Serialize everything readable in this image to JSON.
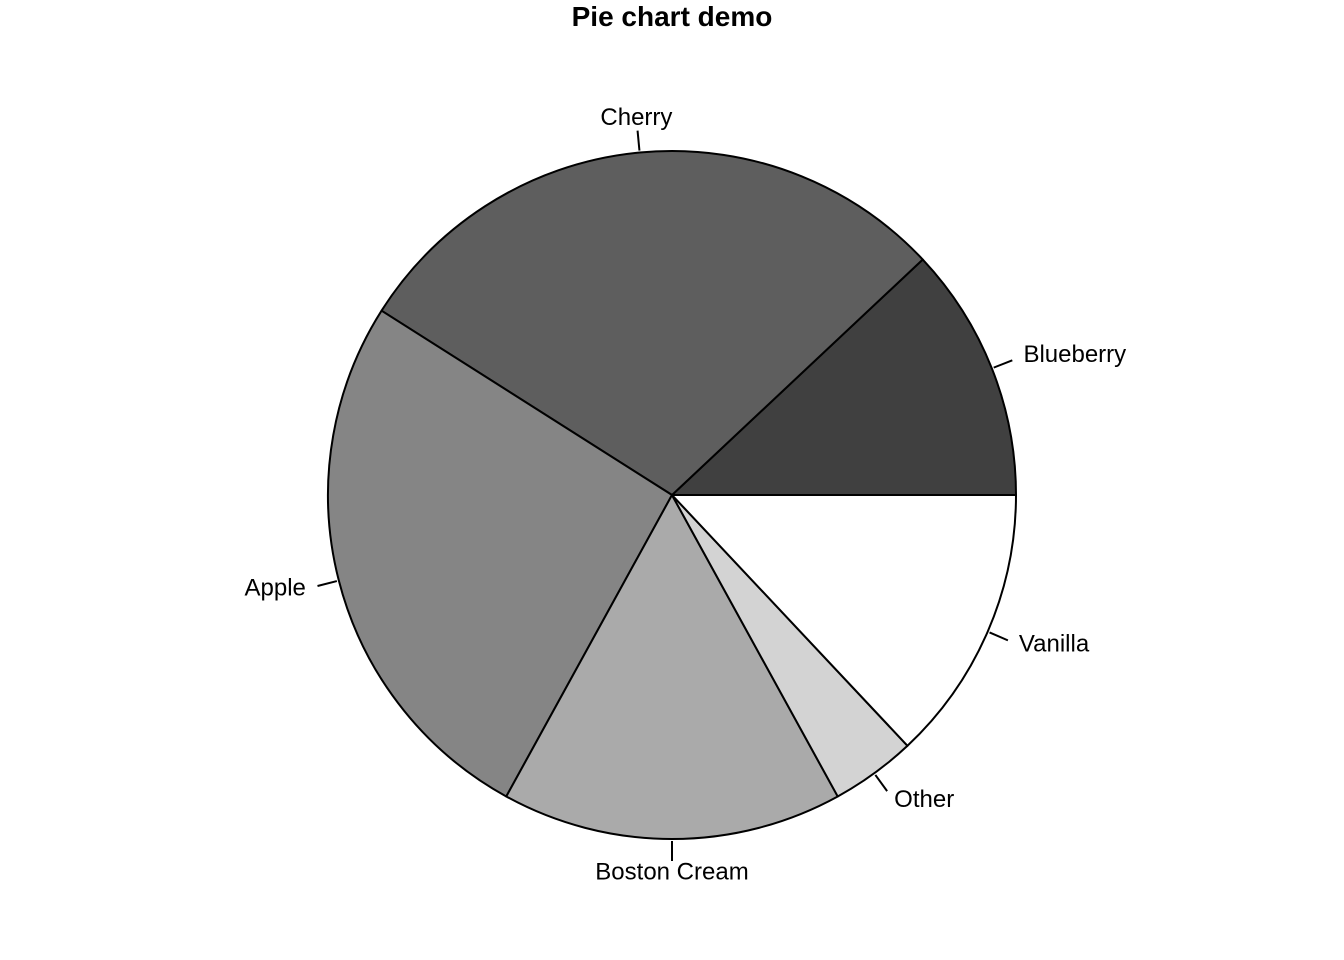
{
  "chart_data": {
    "type": "pie",
    "title": "Pie chart demo",
    "start_angle_deg": 0,
    "direction": "counterclockwise",
    "slices": [
      {
        "label": "Blueberry",
        "value": 0.12,
        "color": "#404040"
      },
      {
        "label": "Cherry",
        "value": 0.29,
        "color": "#5e5e5e"
      },
      {
        "label": "Apple",
        "value": 0.26,
        "color": "#858585"
      },
      {
        "label": "Boston Cream",
        "value": 0.16,
        "color": "#aaaaaa"
      },
      {
        "label": "Other",
        "value": 0.04,
        "color": "#d3d3d3"
      },
      {
        "label": "Vanilla",
        "value": 0.13,
        "color": "#ffffff"
      }
    ]
  }
}
